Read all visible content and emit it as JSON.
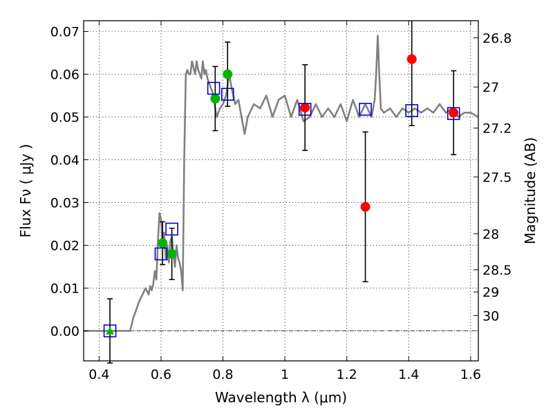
{
  "chart_data": {
    "type": "scatter",
    "title": "",
    "xlabel": "Wavelength  λ (μm)",
    "ylabel": "Flux  Fν  ( μJy )",
    "y2label": "Magnitude (AB)",
    "xlim": [
      0.35,
      1.625
    ],
    "ylim": [
      -0.007,
      0.0725
    ],
    "grid": true,
    "x_ticks": [
      0.4,
      0.6,
      0.8,
      1.0,
      1.2,
      1.4,
      1.6
    ],
    "x_tick_labels": [
      "0.4",
      "0.6",
      "0.8",
      "1",
      "1.2",
      "1.4",
      "1.6"
    ],
    "y_ticks": [
      0.0,
      0.01,
      0.02,
      0.03,
      0.04,
      0.05,
      0.06,
      0.07
    ],
    "y_tick_labels": [
      "0.00",
      "0.01",
      "0.02",
      "0.03",
      "0.04",
      "0.05",
      "0.06",
      "0.07"
    ],
    "mag_ticks": [
      {
        "label": "26.8",
        "flux": 0.0685
      },
      {
        "label": "27",
        "flux": 0.057
      },
      {
        "label": "27.2",
        "flux": 0.0474
      },
      {
        "label": "27.5",
        "flux": 0.036
      },
      {
        "label": "28",
        "flux": 0.0227
      },
      {
        "label": "28.5",
        "flux": 0.0143
      },
      {
        "label": "29",
        "flux": 0.0091
      },
      {
        "label": "30",
        "flux": 0.0036
      }
    ],
    "colors": {
      "model": "#808080",
      "green": "#00b400",
      "red": "#ff0000",
      "square": "#0000cc",
      "errorbar": "#000000"
    },
    "model_spectrum": {
      "name": "model SED",
      "x": [
        0.35,
        0.44,
        0.5,
        0.51,
        0.53,
        0.55,
        0.56,
        0.565,
        0.57,
        0.575,
        0.58,
        0.585,
        0.59,
        0.595,
        0.6,
        0.605,
        0.61,
        0.615,
        0.62,
        0.625,
        0.63,
        0.635,
        0.64,
        0.645,
        0.65,
        0.655,
        0.66,
        0.665,
        0.67,
        0.675,
        0.68,
        0.685,
        0.69,
        0.695,
        0.7,
        0.71,
        0.715,
        0.72,
        0.73,
        0.735,
        0.74,
        0.745,
        0.75,
        0.755,
        0.76,
        0.77,
        0.775,
        0.78,
        0.79,
        0.8,
        0.81,
        0.82,
        0.83,
        0.84,
        0.85,
        0.86,
        0.87,
        0.88,
        0.9,
        0.92,
        0.94,
        0.96,
        0.98,
        1.0,
        1.02,
        1.04,
        1.06,
        1.08,
        1.1,
        1.12,
        1.14,
        1.16,
        1.18,
        1.2,
        1.22,
        1.24,
        1.26,
        1.28,
        1.29,
        1.295,
        1.3,
        1.305,
        1.31,
        1.32,
        1.34,
        1.36,
        1.38,
        1.4,
        1.42,
        1.44,
        1.46,
        1.48,
        1.5,
        1.52,
        1.54,
        1.56,
        1.58,
        1.6,
        1.625
      ],
      "y": [
        0.0,
        0.0,
        0.0,
        0.003,
        0.007,
        0.01,
        0.0085,
        0.0105,
        0.0095,
        0.011,
        0.014,
        0.012,
        0.021,
        0.0275,
        0.026,
        0.02,
        0.023,
        0.017,
        0.02,
        0.016,
        0.021,
        0.022,
        0.018,
        0.015,
        0.02,
        0.017,
        0.016,
        0.014,
        0.0095,
        0.04,
        0.06,
        0.061,
        0.06,
        0.06,
        0.063,
        0.06,
        0.063,
        0.061,
        0.059,
        0.063,
        0.06,
        0.061,
        0.059,
        0.058,
        0.057,
        0.055,
        0.052,
        0.05,
        0.052,
        0.053,
        0.055,
        0.06,
        0.056,
        0.053,
        0.054,
        0.05,
        0.046,
        0.05,
        0.053,
        0.052,
        0.055,
        0.05,
        0.054,
        0.055,
        0.05,
        0.054,
        0.049,
        0.05,
        0.053,
        0.05,
        0.052,
        0.05,
        0.053,
        0.049,
        0.054,
        0.05,
        0.053,
        0.05,
        0.054,
        0.06,
        0.069,
        0.06,
        0.052,
        0.051,
        0.052,
        0.05,
        0.052,
        0.051,
        0.052,
        0.051,
        0.052,
        0.051,
        0.053,
        0.051,
        0.052,
        0.05,
        0.051,
        0.051,
        0.05
      ]
    },
    "series": [
      {
        "name": "green detections",
        "marker": "circle",
        "color": "#00b400",
        "x": [
          0.605,
          0.635,
          0.775,
          0.815
        ],
        "y": [
          0.0205,
          0.018,
          0.0543,
          0.06
        ],
        "yerr": [
          0.005,
          0.006,
          0.0075,
          0.0075
        ]
      },
      {
        "name": "green upper-limit",
        "marker": "triangle",
        "color": "#00b400",
        "x": [
          0.435
        ],
        "y": [
          0.0
        ],
        "yerr": [
          0.0075
        ]
      },
      {
        "name": "red detections",
        "marker": "circle",
        "color": "#ff0000",
        "x": [
          1.065,
          1.26,
          1.41,
          1.545
        ],
        "y": [
          0.0522,
          0.029,
          0.0635,
          0.051
        ],
        "yerr": [
          0.01,
          0.0175,
          0.0155,
          0.0098
        ]
      },
      {
        "name": "model bandpass fluxes",
        "marker": "square",
        "color": "#0000cc",
        "x": [
          0.435,
          0.6,
          0.635,
          0.77,
          0.815,
          1.065,
          1.26,
          1.41,
          1.545
        ],
        "y": [
          0.0,
          0.018,
          0.0238,
          0.0567,
          0.0553,
          0.0518,
          0.0518,
          0.0515,
          0.0508
        ]
      }
    ]
  }
}
